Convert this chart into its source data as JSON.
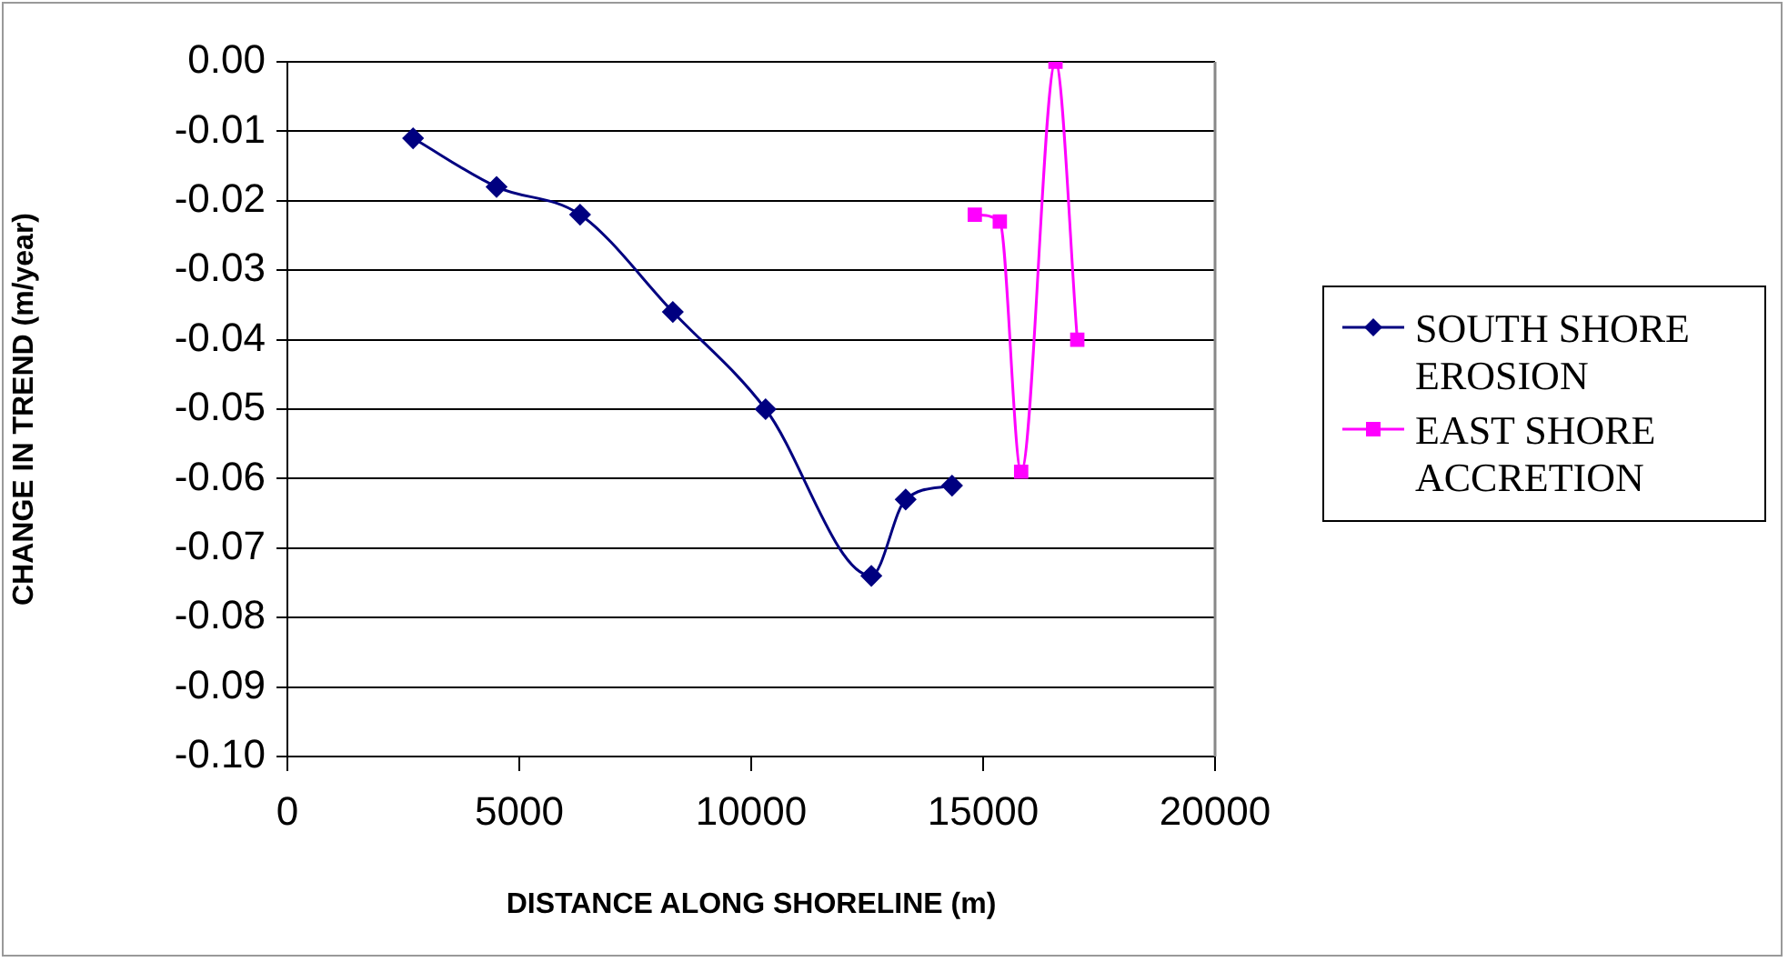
{
  "chart_data": {
    "type": "line",
    "xlabel": "DISTANCE ALONG SHORELINE (m)",
    "ylabel": "CHANGE IN TREND (m/year)",
    "xlim": [
      0,
      20000
    ],
    "xticks": [
      0,
      5000,
      10000,
      15000,
      20000
    ],
    "ylim": [
      -0.1,
      0
    ],
    "yticks": [
      {
        "value": -0.1,
        "label": "-0.10"
      },
      {
        "value": -0.09,
        "label": "-0.09"
      },
      {
        "value": -0.08,
        "label": "-0.08"
      },
      {
        "value": -0.07,
        "label": "-0.07"
      },
      {
        "value": -0.06,
        "label": "-0.06"
      },
      {
        "value": -0.05,
        "label": "-0.05"
      },
      {
        "value": -0.04,
        "label": "-0.04"
      },
      {
        "value": -0.03,
        "label": "-0.03"
      },
      {
        "value": -0.02,
        "label": "-0.02"
      },
      {
        "value": -0.01,
        "label": "-0.01"
      },
      {
        "value": 0,
        "label": "0.00"
      }
    ],
    "grid": "y",
    "legend": "right",
    "series": [
      {
        "name": "SOUTH SHORE EROSION",
        "color": "#000080",
        "marker": "diamond",
        "x": [
          2710,
          4510,
          6310,
          8310,
          10310,
          12590,
          13330,
          14330
        ],
        "values": [
          -0.011,
          -0.018,
          -0.022,
          -0.036,
          -0.05,
          -0.074,
          -0.063,
          -0.061
        ]
      },
      {
        "name": "EAST SHORE ACCRETION",
        "color": "#ff00ff",
        "marker": "square",
        "x": [
          14820,
          15360,
          15820,
          16560,
          17030
        ],
        "values": [
          -0.022,
          -0.023,
          -0.059,
          0.0,
          -0.04
        ]
      }
    ]
  }
}
